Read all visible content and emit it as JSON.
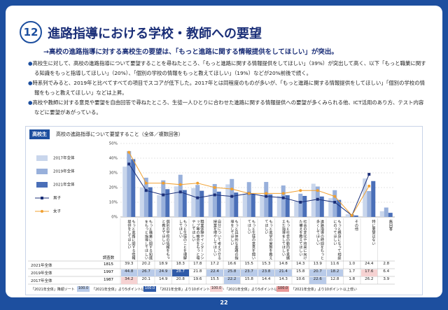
{
  "header": {
    "number": "12",
    "title": "進路指導における学校・教師への要望",
    "lead": "→高校の進路指導に対する高校生の要望は、「もっと進路に関する情報提供をしてほしい」が突出。"
  },
  "bullets": [
    "高校生に対して、高校の進路指導について要望することを尋ねたところ、「もっと進路に関する情報提供をしてほしい」（39%）が突出して高く、以下「もっと職業に関する知識をもっと指導してほしい」（20%）、「個別の学校の情報をもっと教えてほしい」（19%）などが20%前後で続く。",
    "時系列でみると、2019年と比べてすべての項目でスコアが低下した。2017年とは同程度のものが多いが、「もっと進路に関する情報提供をしてほしい」「個別の学校の情報をもっと教えてほしい」などは上昇。",
    "高校や教師に対する意見や要望を自由回答で尋ねたところ、生徒一人ひとりに合わせた進路に関する情報提供への要望が多くみられる他、ICT活用のあり方、テスト内容などに要望があがっている。"
  ],
  "chart_data": {
    "type": "bar",
    "tag": "高校生",
    "title": "高校の進路指導について要望すること（全体／複数回答）",
    "ylim": [
      0,
      50
    ],
    "yticks": [
      {
        "value": 0,
        "label": "0%"
      },
      {
        "value": 10,
        "label": "10%"
      },
      {
        "value": 20,
        "label": "20%"
      },
      {
        "value": 30,
        "label": "30%"
      },
      {
        "value": 40,
        "label": "40%"
      },
      {
        "value": 50,
        "label": "50%"
      }
    ],
    "grid": true,
    "n_label": "調査数",
    "categories": [
      "もっと進路に関する情報提供をしてほしい",
      "もっと職業に関する知識をもっと指導してほしい",
      "個別の学校の情報をもっと教えてほしい",
      "もっと生徒のことを理解してほしい",
      "職業体験やインターンシップ等の機会をもっと増やしてほしい",
      "自分について考えさせる授業を増やしてほしい",
      "もっと具体的な進路の指導をしてほしい",
      "もっと生徒の意見を聞いてほしい",
      "もっと進学の実態を教えてほしい",
      "もっと社会の動向を見据えた指導をしてほしい",
      "社会の変化や将来に向けた備えを教えてほしい",
      "進路指導の時間をもっと多くしてほしい",
      "もっと親身になって相談にのってほしい",
      "その他",
      "特に要望はない",
      "無回答"
    ],
    "series": [
      {
        "name": "2017年全体",
        "type": "bar",
        "color": "#c9d6ec",
        "n": 1987,
        "values": [
          34.2,
          20.1,
          14.9,
          20.8,
          19.6,
          15.5,
          22.2,
          15.8,
          14.4,
          14.3,
          10.6,
          22.6,
          12.8,
          1.8,
          26.2,
          3.9
        ],
        "value_labels": [
          "34.2",
          "20.1",
          "14.9",
          "20.8",
          "19.6",
          "15.5",
          "22.2",
          "15.8",
          "14.4",
          "14.3",
          "10.6",
          "22.6",
          "12.8",
          "1.8",
          "26.2",
          "3.9"
        ]
      },
      {
        "name": "2019年全体",
        "type": "bar",
        "color": "#98b0db",
        "n": 1997,
        "values": [
          44.8,
          26.7,
          24.9,
          28.7,
          21.8,
          22.4,
          25.8,
          23.7,
          23.8,
          21.4,
          15.8,
          20.7,
          18.2,
          1.7,
          17.6,
          6.4
        ],
        "value_labels": [
          "44.8",
          "26.7",
          "24.9",
          "28.7",
          "21.8",
          "22.4",
          "25.8",
          "23.7",
          "23.8",
          "21.4",
          "15.8",
          "20.7",
          "18.2",
          "1.7",
          "17.6",
          "6.4"
        ]
      },
      {
        "name": "2021年全体",
        "type": "bar",
        "color": "#4a6fb8",
        "n": 1815,
        "values": [
          39.3,
          20.2,
          18.9,
          18.3,
          17.8,
          17.2,
          16.6,
          15.5,
          15.3,
          14.8,
          14.3,
          13.9,
          11.6,
          1.0,
          24.4,
          2.8
        ],
        "value_labels": [
          "39.3",
          "20.2",
          "18.9",
          "18.3",
          "17.8",
          "17.2",
          "16.6",
          "15.5",
          "15.3",
          "14.8",
          "14.3",
          "13.9",
          "11.6",
          "1.0",
          "24.4",
          "2.8"
        ]
      },
      {
        "name": "男子",
        "type": "line",
        "marker": "square",
        "color": "#1b2f78",
        "values": [
          36,
          18,
          15,
          17,
          13,
          15,
          14,
          16,
          14,
          13,
          10,
          12,
          10,
          1,
          29,
          null
        ]
      },
      {
        "name": "女子",
        "type": "line",
        "marker": "circle",
        "color": "#f0a030",
        "values": [
          44,
          23,
          23,
          22,
          23,
          20,
          19,
          16,
          16,
          16,
          18,
          18,
          14,
          1,
          21,
          null
        ]
      }
    ]
  },
  "footer": {
    "sort_note": "「2021年全体」降順ソート",
    "swatch": "100.0",
    "notes": [
      "「2021年全体」より5ポイント以上高い",
      "「2021年全体」より10ポイント以上高い",
      "「2021年全体」より5ポイント以上低い",
      "「2021年全体」より10ポイント以上低い"
    ]
  },
  "page": "22"
}
